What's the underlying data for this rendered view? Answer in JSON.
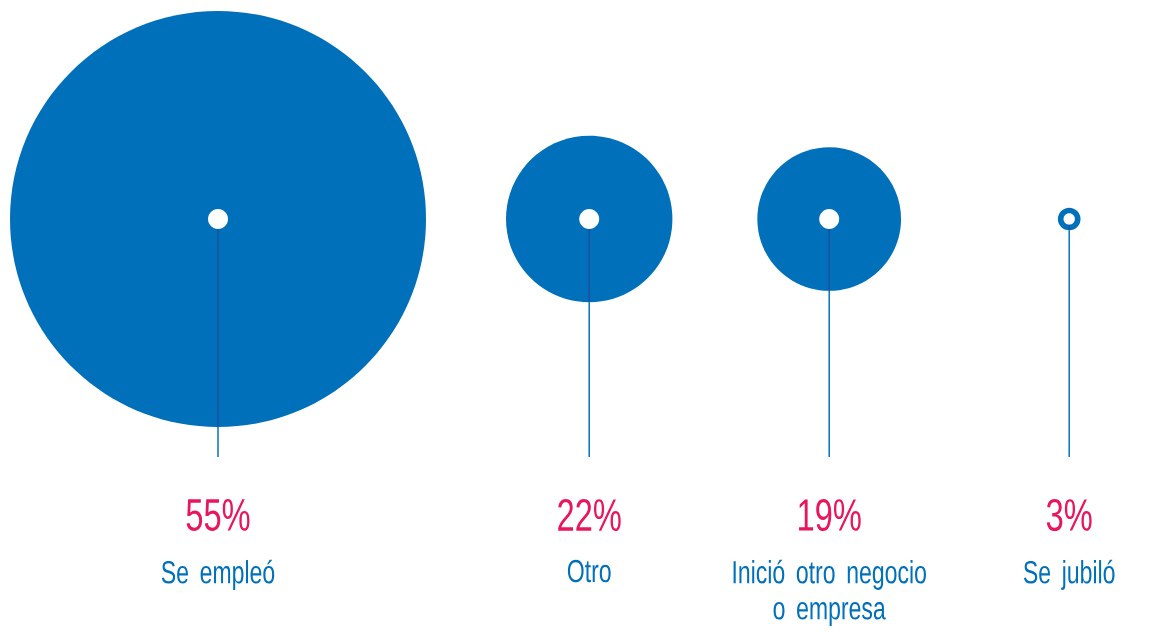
{
  "chart_data": {
    "type": "other",
    "categories": [
      "Se empleó",
      "Otro",
      "Inició otro negocio o empresa",
      "Se jubiló"
    ],
    "values": [
      55,
      22,
      19,
      3
    ],
    "value_labels": [
      "55%",
      "22%",
      "19%",
      "3%"
    ],
    "color": "#0070ba"
  }
}
